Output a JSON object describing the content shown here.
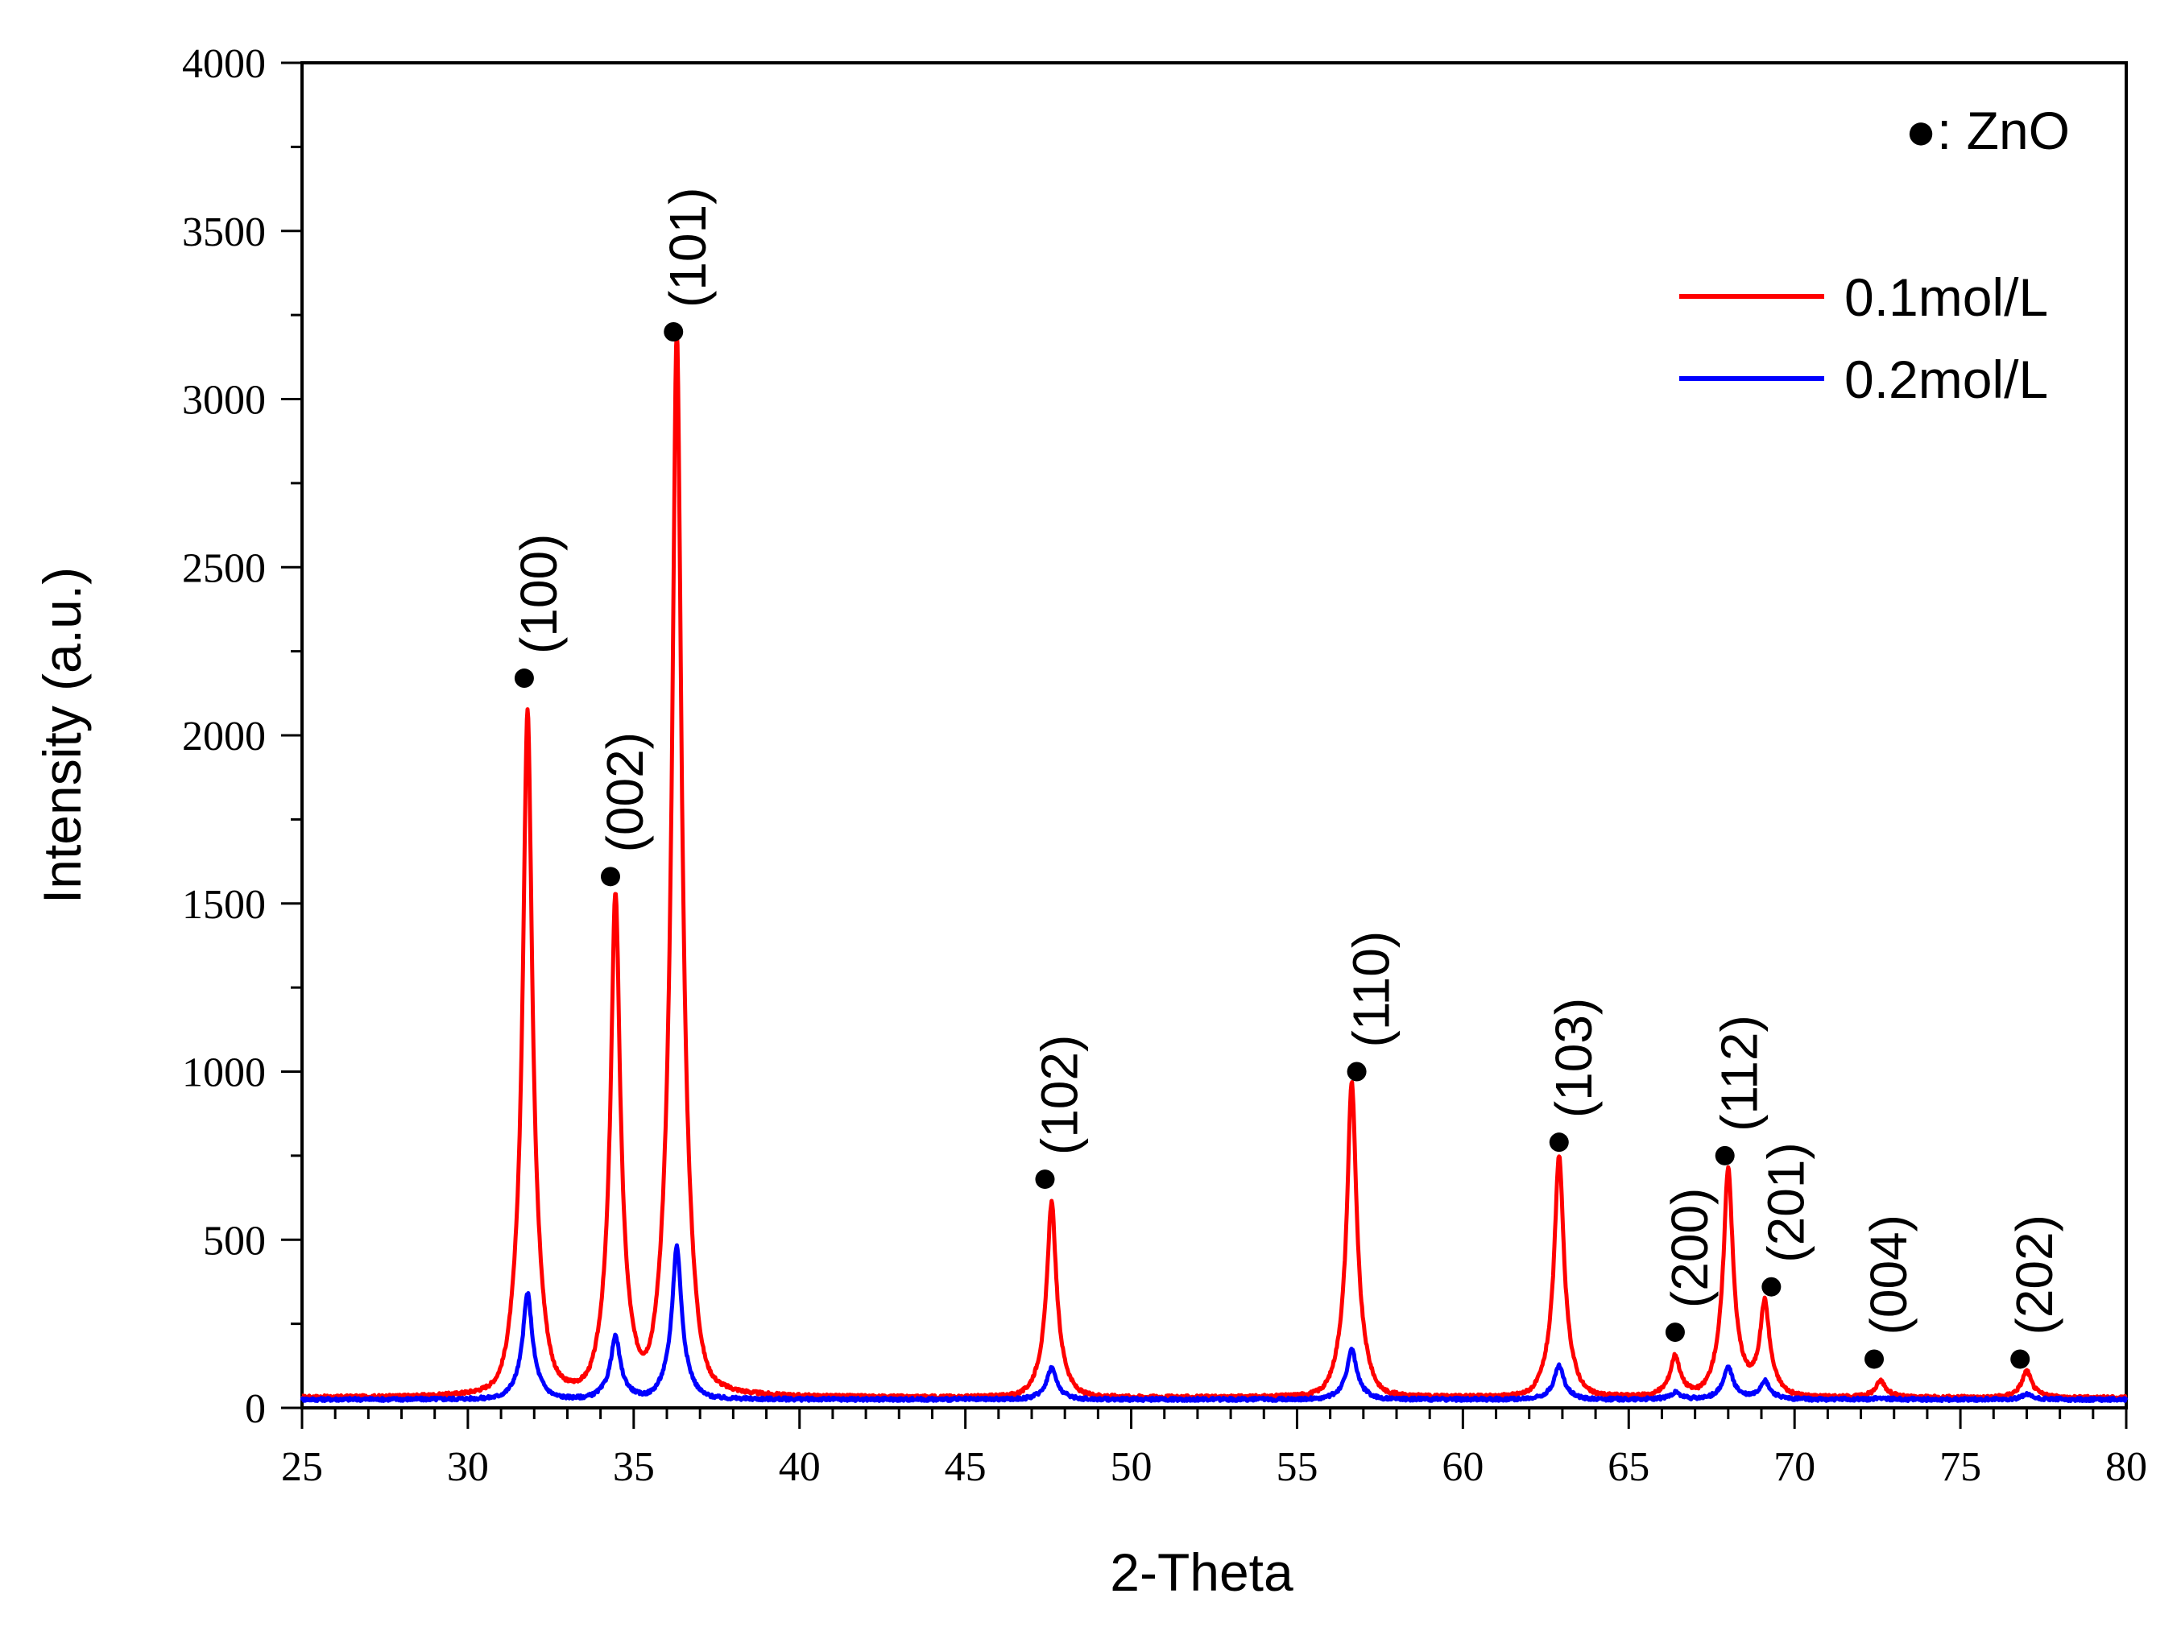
{
  "chart_data": {
    "type": "line",
    "title": "",
    "xlabel": "2-Theta",
    "ylabel": "Intensity (a.u.)",
    "xlim": [
      25,
      80
    ],
    "ylim": [
      0,
      4000
    ],
    "x_ticks": [
      "25",
      "30",
      "35",
      "40",
      "45",
      "50",
      "55",
      "60",
      "65",
      "70",
      "75",
      "80"
    ],
    "y_ticks": [
      "0",
      "500",
      "1000",
      "1500",
      "2000",
      "2500",
      "3000",
      "3500",
      "4000"
    ],
    "legend_position": "top-right",
    "marker_legend": "●: ZnO",
    "series": [
      {
        "name": "0.1mol/L",
        "color": "#ff0000",
        "baseline": 30,
        "peaks": [
          {
            "x": 31.8,
            "y": 2070
          },
          {
            "x": 34.45,
            "y": 1510
          },
          {
            "x": 36.3,
            "y": 3190
          },
          {
            "x": 47.6,
            "y": 610
          },
          {
            "x": 56.65,
            "y": 970
          },
          {
            "x": 62.9,
            "y": 750
          },
          {
            "x": 66.4,
            "y": 150
          },
          {
            "x": 68.0,
            "y": 710
          },
          {
            "x": 69.1,
            "y": 310
          },
          {
            "x": 72.6,
            "y": 80
          },
          {
            "x": 77.0,
            "y": 110
          }
        ]
      },
      {
        "name": "0.2mol/L",
        "color": "#0000ff",
        "baseline": 25,
        "peaks": [
          {
            "x": 31.8,
            "y": 340
          },
          {
            "x": 34.45,
            "y": 210
          },
          {
            "x": 36.3,
            "y": 480
          },
          {
            "x": 47.6,
            "y": 120
          },
          {
            "x": 56.65,
            "y": 175
          },
          {
            "x": 62.9,
            "y": 125
          },
          {
            "x": 66.4,
            "y": 45
          },
          {
            "x": 68.0,
            "y": 120
          },
          {
            "x": 69.1,
            "y": 80
          },
          {
            "x": 72.6,
            "y": 30
          },
          {
            "x": 77.0,
            "y": 40
          }
        ]
      }
    ],
    "annotations": [
      {
        "hkl": "(100)",
        "x": 31.7,
        "y": 2170
      },
      {
        "hkl": "(002)",
        "x": 34.3,
        "y": 1580
      },
      {
        "hkl": "(101)",
        "x": 36.2,
        "y": 3200
      },
      {
        "hkl": "(102)",
        "x": 47.4,
        "y": 680
      },
      {
        "hkl": "(110)",
        "x": 56.8,
        "y": 1000
      },
      {
        "hkl": "(103)",
        "x": 62.9,
        "y": 790
      },
      {
        "hkl": "(200)",
        "x": 66.4,
        "y": 225
      },
      {
        "hkl": "(112)",
        "x": 67.9,
        "y": 750
      },
      {
        "hkl": "(201)",
        "x": 69.3,
        "y": 360
      },
      {
        "hkl": "(004)",
        "x": 72.4,
        "y": 145
      },
      {
        "hkl": "(202)",
        "x": 76.8,
        "y": 145
      }
    ]
  }
}
